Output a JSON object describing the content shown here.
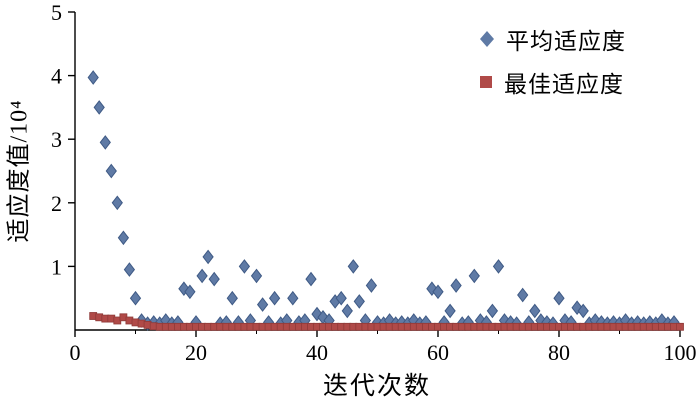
{
  "chart_data": {
    "type": "scatter",
    "title": "",
    "xlabel": "迭代次数",
    "ylabel": "适应度值/10⁴",
    "xlim": [
      0,
      100
    ],
    "ylim": [
      0,
      5
    ],
    "grid": false,
    "legend_position": "top-right",
    "background": "#ffffff",
    "axis_color": "#000000",
    "x_ticks": [
      {
        "v": 0,
        "label": "0"
      },
      {
        "v": 20,
        "label": "20"
      },
      {
        "v": 40,
        "label": "40"
      },
      {
        "v": 60,
        "label": "60"
      },
      {
        "v": 80,
        "label": "80"
      },
      {
        "v": 100,
        "label": "100"
      }
    ],
    "x_minor_ticks": [
      10,
      30,
      50,
      70,
      90
    ],
    "y_ticks": [
      {
        "v": 1,
        "label": "1"
      },
      {
        "v": 2,
        "label": "2"
      },
      {
        "v": 3,
        "label": "3"
      },
      {
        "v": 4,
        "label": "4"
      },
      {
        "v": 5,
        "label": "5"
      }
    ],
    "series": [
      {
        "name": "平均适应度",
        "marker": "diamond",
        "color": "#5f7aa5",
        "edge": "#3f5a85",
        "points": [
          [
            3,
            3.97
          ],
          [
            4,
            3.5
          ],
          [
            5,
            2.95
          ],
          [
            6,
            2.5
          ],
          [
            7,
            2.0
          ],
          [
            8,
            1.45
          ],
          [
            9,
            0.95
          ],
          [
            10,
            0.5
          ],
          [
            11,
            0.15
          ],
          [
            12,
            0.1
          ],
          [
            13,
            0.12
          ],
          [
            14,
            0.1
          ],
          [
            15,
            0.15
          ],
          [
            16,
            0.1
          ],
          [
            17,
            0.12
          ],
          [
            18,
            0.65
          ],
          [
            19,
            0.6
          ],
          [
            20,
            0.12
          ],
          [
            21,
            0.85
          ],
          [
            22,
            1.15
          ],
          [
            23,
            0.8
          ],
          [
            24,
            0.1
          ],
          [
            25,
            0.12
          ],
          [
            26,
            0.5
          ],
          [
            27,
            0.12
          ],
          [
            28,
            1.0
          ],
          [
            29,
            0.15
          ],
          [
            30,
            0.85
          ],
          [
            31,
            0.4
          ],
          [
            32,
            0.12
          ],
          [
            33,
            0.5
          ],
          [
            34,
            0.1
          ],
          [
            35,
            0.15
          ],
          [
            36,
            0.5
          ],
          [
            37,
            0.12
          ],
          [
            38,
            0.15
          ],
          [
            39,
            0.8
          ],
          [
            40,
            0.25
          ],
          [
            41,
            0.2
          ],
          [
            42,
            0.15
          ],
          [
            43,
            0.45
          ],
          [
            44,
            0.5
          ],
          [
            45,
            0.3
          ],
          [
            46,
            1.0
          ],
          [
            47,
            0.45
          ],
          [
            48,
            0.15
          ],
          [
            49,
            0.7
          ],
          [
            50,
            0.12
          ],
          [
            51,
            0.1
          ],
          [
            52,
            0.15
          ],
          [
            53,
            0.1
          ],
          [
            54,
            0.12
          ],
          [
            55,
            0.1
          ],
          [
            56,
            0.15
          ],
          [
            57,
            0.1
          ],
          [
            58,
            0.12
          ],
          [
            59,
            0.65
          ],
          [
            60,
            0.6
          ],
          [
            61,
            0.12
          ],
          [
            62,
            0.3
          ],
          [
            63,
            0.7
          ],
          [
            64,
            0.1
          ],
          [
            65,
            0.12
          ],
          [
            66,
            0.85
          ],
          [
            67,
            0.15
          ],
          [
            68,
            0.12
          ],
          [
            69,
            0.3
          ],
          [
            70,
            1.0
          ],
          [
            71,
            0.15
          ],
          [
            72,
            0.12
          ],
          [
            73,
            0.1
          ],
          [
            74,
            0.55
          ],
          [
            75,
            0.12
          ],
          [
            76,
            0.3
          ],
          [
            77,
            0.15
          ],
          [
            78,
            0.12
          ],
          [
            79,
            0.1
          ],
          [
            80,
            0.5
          ],
          [
            81,
            0.15
          ],
          [
            82,
            0.12
          ],
          [
            83,
            0.35
          ],
          [
            84,
            0.3
          ],
          [
            85,
            0.1
          ],
          [
            86,
            0.15
          ],
          [
            87,
            0.12
          ],
          [
            88,
            0.1
          ],
          [
            89,
            0.12
          ],
          [
            90,
            0.1
          ],
          [
            91,
            0.15
          ],
          [
            92,
            0.1
          ],
          [
            93,
            0.12
          ],
          [
            94,
            0.1
          ],
          [
            95,
            0.12
          ],
          [
            96,
            0.1
          ],
          [
            97,
            0.15
          ],
          [
            98,
            0.1
          ],
          [
            99,
            0.12
          ]
        ]
      },
      {
        "name": "最佳适应度",
        "marker": "square",
        "color": "#b04a48",
        "edge": "#8f3a38",
        "points": [
          [
            3,
            0.22
          ],
          [
            4,
            0.2
          ],
          [
            5,
            0.18
          ],
          [
            6,
            0.18
          ],
          [
            7,
            0.15
          ],
          [
            8,
            0.2
          ],
          [
            9,
            0.15
          ],
          [
            10,
            0.12
          ],
          [
            11,
            0.1
          ],
          [
            12,
            0.08
          ],
          [
            13,
            0.06
          ],
          [
            14,
            0.05
          ],
          [
            15,
            0.05
          ],
          [
            16,
            0.05
          ],
          [
            17,
            0.05
          ],
          [
            18,
            0.05
          ],
          [
            19,
            0.05
          ],
          [
            20,
            0.05
          ],
          [
            21,
            0.05
          ],
          [
            22,
            0.05
          ],
          [
            23,
            0.05
          ],
          [
            24,
            0.05
          ],
          [
            25,
            0.05
          ],
          [
            26,
            0.05
          ],
          [
            27,
            0.05
          ],
          [
            28,
            0.05
          ],
          [
            29,
            0.05
          ],
          [
            30,
            0.05
          ],
          [
            31,
            0.05
          ],
          [
            32,
            0.05
          ],
          [
            33,
            0.05
          ],
          [
            34,
            0.05
          ],
          [
            35,
            0.05
          ],
          [
            36,
            0.05
          ],
          [
            37,
            0.05
          ],
          [
            38,
            0.05
          ],
          [
            39,
            0.05
          ],
          [
            40,
            0.05
          ],
          [
            41,
            0.05
          ],
          [
            42,
            0.05
          ],
          [
            43,
            0.05
          ],
          [
            44,
            0.05
          ],
          [
            45,
            0.05
          ],
          [
            46,
            0.05
          ],
          [
            47,
            0.05
          ],
          [
            48,
            0.05
          ],
          [
            49,
            0.05
          ],
          [
            50,
            0.05
          ],
          [
            51,
            0.05
          ],
          [
            52,
            0.05
          ],
          [
            53,
            0.05
          ],
          [
            54,
            0.05
          ],
          [
            55,
            0.05
          ],
          [
            56,
            0.05
          ],
          [
            57,
            0.05
          ],
          [
            58,
            0.05
          ],
          [
            59,
            0.05
          ],
          [
            60,
            0.05
          ],
          [
            61,
            0.05
          ],
          [
            62,
            0.05
          ],
          [
            63,
            0.05
          ],
          [
            64,
            0.05
          ],
          [
            65,
            0.05
          ],
          [
            66,
            0.05
          ],
          [
            67,
            0.05
          ],
          [
            68,
            0.05
          ],
          [
            69,
            0.05
          ],
          [
            70,
            0.05
          ],
          [
            71,
            0.05
          ],
          [
            72,
            0.05
          ],
          [
            73,
            0.05
          ],
          [
            74,
            0.05
          ],
          [
            75,
            0.05
          ],
          [
            76,
            0.05
          ],
          [
            77,
            0.05
          ],
          [
            78,
            0.05
          ],
          [
            79,
            0.05
          ],
          [
            80,
            0.05
          ],
          [
            81,
            0.05
          ],
          [
            82,
            0.05
          ],
          [
            83,
            0.05
          ],
          [
            84,
            0.05
          ],
          [
            85,
            0.05
          ],
          [
            86,
            0.05
          ],
          [
            87,
            0.05
          ],
          [
            88,
            0.05
          ],
          [
            89,
            0.05
          ],
          [
            90,
            0.05
          ],
          [
            91,
            0.05
          ],
          [
            92,
            0.05
          ],
          [
            93,
            0.05
          ],
          [
            94,
            0.05
          ],
          [
            95,
            0.05
          ],
          [
            96,
            0.05
          ],
          [
            97,
            0.05
          ],
          [
            98,
            0.05
          ],
          [
            99,
            0.05
          ],
          [
            100,
            0.05
          ]
        ]
      }
    ]
  }
}
